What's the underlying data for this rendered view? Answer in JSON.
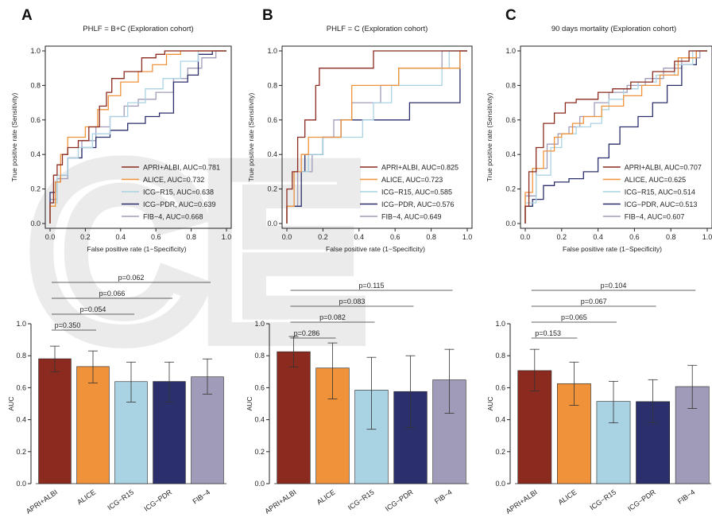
{
  "colors": {
    "APRI+ALBI": "#8b2a1e",
    "ALICE": "#f0923a",
    "ICG-R15": "#a9d3e3",
    "ICG-PDR": "#2b2f6b",
    "FIB-4": "#a09bb8"
  },
  "watermark_text": "CE",
  "chart_data": [
    {
      "panel": "A",
      "type": "line",
      "title": "PHLF = B+C (Exploration cohort)",
      "xlabel": "False positive rate (1−Specificity)",
      "ylabel": "True positive rate (Sensitivity)",
      "xlim": [
        0,
        1
      ],
      "ylim": [
        0,
        1
      ],
      "ticks": [
        "0.0",
        "0.2",
        "0.4",
        "0.6",
        "0.8",
        "1.0"
      ],
      "legend_position": "bottom-right",
      "series": [
        {
          "key": "APRI+ALBI",
          "name": "APRI+ALBI, AUC=0.781",
          "points": [
            [
              0,
              0
            ],
            [
              0.02,
              0.12
            ],
            [
              0.04,
              0.28
            ],
            [
              0.07,
              0.34
            ],
            [
              0.1,
              0.4
            ],
            [
              0.16,
              0.44
            ],
            [
              0.22,
              0.48
            ],
            [
              0.28,
              0.56
            ],
            [
              0.32,
              0.68
            ],
            [
              0.35,
              0.76
            ],
            [
              0.42,
              0.84
            ],
            [
              0.52,
              0.88
            ],
            [
              0.6,
              0.96
            ],
            [
              0.65,
              0.98
            ],
            [
              0.8,
              1.0
            ],
            [
              1,
              1
            ]
          ]
        },
        {
          "key": "ALICE",
          "name": "ALICE, AUC=0.732",
          "points": [
            [
              0,
              0
            ],
            [
              0.03,
              0.1
            ],
            [
              0.06,
              0.24
            ],
            [
              0.1,
              0.4
            ],
            [
              0.14,
              0.5
            ],
            [
              0.2,
              0.5
            ],
            [
              0.27,
              0.56
            ],
            [
              0.33,
              0.66
            ],
            [
              0.4,
              0.74
            ],
            [
              0.5,
              0.82
            ],
            [
              0.58,
              0.88
            ],
            [
              0.66,
              0.92
            ],
            [
              0.74,
              0.98
            ],
            [
              1,
              1
            ]
          ]
        },
        {
          "key": "ICG-R15",
          "name": "ICG−R15, AUC=0.638",
          "points": [
            [
              0,
              0
            ],
            [
              0.04,
              0.12
            ],
            [
              0.1,
              0.28
            ],
            [
              0.16,
              0.38
            ],
            [
              0.24,
              0.44
            ],
            [
              0.34,
              0.52
            ],
            [
              0.44,
              0.62
            ],
            [
              0.54,
              0.7
            ],
            [
              0.64,
              0.78
            ],
            [
              0.74,
              0.84
            ],
            [
              0.84,
              0.94
            ],
            [
              1,
              1
            ]
          ]
        },
        {
          "key": "ICG-PDR",
          "name": "ICG−PDR, AUC=0.639",
          "points": [
            [
              0,
              0
            ],
            [
              0.03,
              0.18
            ],
            [
              0.06,
              0.24
            ],
            [
              0.1,
              0.28
            ],
            [
              0.18,
              0.38
            ],
            [
              0.26,
              0.44
            ],
            [
              0.34,
              0.5
            ],
            [
              0.44,
              0.54
            ],
            [
              0.54,
              0.58
            ],
            [
              0.62,
              0.62
            ],
            [
              0.7,
              0.64
            ],
            [
              0.78,
              0.82
            ],
            [
              0.84,
              0.86
            ],
            [
              0.92,
              0.98
            ],
            [
              1,
              1
            ]
          ]
        },
        {
          "key": "FIB-4",
          "name": "FIB−4, AUC=0.668",
          "points": [
            [
              0,
              0
            ],
            [
              0.04,
              0.14
            ],
            [
              0.1,
              0.26
            ],
            [
              0.18,
              0.38
            ],
            [
              0.26,
              0.48
            ],
            [
              0.34,
              0.56
            ],
            [
              0.42,
              0.62
            ],
            [
              0.5,
              0.68
            ],
            [
              0.6,
              0.72
            ],
            [
              0.7,
              0.76
            ],
            [
              0.78,
              0.84
            ],
            [
              0.86,
              0.9
            ],
            [
              0.94,
              0.96
            ],
            [
              1,
              1
            ]
          ]
        }
      ]
    },
    {
      "panel": "B",
      "type": "line",
      "title": "PHLF = C (Exploration cohort)",
      "xlabel": "False positive rate (1−Specificity)",
      "ylabel": "True positive rate (Sensitivity)",
      "xlim": [
        0,
        1
      ],
      "ylim": [
        0,
        1
      ],
      "ticks": [
        "0.0",
        "0.2",
        "0.4",
        "0.6",
        "0.8",
        "1.0"
      ],
      "legend_position": "bottom-right",
      "series": [
        {
          "key": "APRI+ALBI",
          "name": "APRI+ALBI, AUC=0.825",
          "points": [
            [
              0,
              0
            ],
            [
              0.03,
              0.2
            ],
            [
              0.06,
              0.3
            ],
            [
              0.1,
              0.5
            ],
            [
              0.16,
              0.6
            ],
            [
              0.18,
              0.8
            ],
            [
              0.28,
              0.9
            ],
            [
              0.48,
              0.9
            ],
            [
              0.52,
              1.0
            ],
            [
              1,
              1
            ]
          ]
        },
        {
          "key": "ALICE",
          "name": "ALICE, AUC=0.723",
          "points": [
            [
              0,
              0
            ],
            [
              0.04,
              0.1
            ],
            [
              0.08,
              0.3
            ],
            [
              0.12,
              0.4
            ],
            [
              0.2,
              0.5
            ],
            [
              0.3,
              0.5
            ],
            [
              0.36,
              0.6
            ],
            [
              0.4,
              0.8
            ],
            [
              0.62,
              0.8
            ],
            [
              0.66,
              0.9
            ],
            [
              0.96,
              0.9
            ],
            [
              1,
              1
            ]
          ]
        },
        {
          "key": "ICG-R15",
          "name": "ICG−R15, AUC=0.585",
          "points": [
            [
              0,
              0
            ],
            [
              0.04,
              0.1
            ],
            [
              0.12,
              0.3
            ],
            [
              0.2,
              0.4
            ],
            [
              0.3,
              0.5
            ],
            [
              0.42,
              0.5
            ],
            [
              0.48,
              0.6
            ],
            [
              0.58,
              0.7
            ],
            [
              0.72,
              0.8
            ],
            [
              0.86,
              0.8
            ],
            [
              0.9,
              0.9
            ],
            [
              1,
              1
            ]
          ]
        },
        {
          "key": "ICG-PDR",
          "name": "ICG−PDR, AUC=0.576",
          "points": [
            [
              0,
              0
            ],
            [
              0.08,
              0.1
            ],
            [
              0.1,
              0.3
            ],
            [
              0.2,
              0.4
            ],
            [
              0.24,
              0.5
            ],
            [
              0.3,
              0.5
            ],
            [
              0.36,
              0.6
            ],
            [
              0.68,
              0.6
            ],
            [
              0.72,
              0.7
            ],
            [
              0.96,
              0.7
            ],
            [
              1,
              1
            ]
          ]
        },
        {
          "key": "FIB-4",
          "name": "FIB−4, AUC=0.649",
          "points": [
            [
              0,
              0
            ],
            [
              0.06,
              0.1
            ],
            [
              0.14,
              0.3
            ],
            [
              0.2,
              0.4
            ],
            [
              0.26,
              0.5
            ],
            [
              0.36,
              0.6
            ],
            [
              0.52,
              0.7
            ],
            [
              0.62,
              0.8
            ],
            [
              0.76,
              0.9
            ],
            [
              0.86,
              0.9
            ],
            [
              1,
              1
            ]
          ]
        }
      ]
    },
    {
      "panel": "C",
      "type": "line",
      "title": "90 days mortality (Exploration cohort)",
      "xlabel": "False positive rate (1−Specificity)",
      "ylabel": "True positive rate (Sensitivity)",
      "xlim": [
        0,
        1
      ],
      "ylim": [
        0,
        1
      ],
      "ticks": [
        "0.0",
        "0.2",
        "0.4",
        "0.6",
        "0.8",
        "1.0"
      ],
      "legend_position": "bottom-right",
      "series": [
        {
          "key": "APRI+ALBI",
          "name": "APRI+ALBI, AUC=0.707",
          "points": [
            [
              0,
              0
            ],
            [
              0.02,
              0.1
            ],
            [
              0.06,
              0.3
            ],
            [
              0.1,
              0.44
            ],
            [
              0.16,
              0.58
            ],
            [
              0.22,
              0.64
            ],
            [
              0.28,
              0.7
            ],
            [
              0.4,
              0.72
            ],
            [
              0.48,
              0.76
            ],
            [
              0.58,
              0.78
            ],
            [
              0.7,
              0.82
            ],
            [
              0.82,
              0.88
            ],
            [
              0.9,
              0.94
            ],
            [
              0.96,
              1.0
            ],
            [
              1,
              1
            ]
          ]
        },
        {
          "key": "ALICE",
          "name": "ALICE, AUC=0.625",
          "points": [
            [
              0,
              0
            ],
            [
              0.04,
              0.18
            ],
            [
              0.1,
              0.32
            ],
            [
              0.16,
              0.42
            ],
            [
              0.2,
              0.5
            ],
            [
              0.26,
              0.52
            ],
            [
              0.32,
              0.58
            ],
            [
              0.42,
              0.62
            ],
            [
              0.54,
              0.68
            ],
            [
              0.64,
              0.74
            ],
            [
              0.74,
              0.8
            ],
            [
              0.84,
              0.86
            ],
            [
              0.94,
              0.96
            ],
            [
              1,
              1
            ]
          ]
        },
        {
          "key": "ICG-R15",
          "name": "ICG−R15, AUC=0.514",
          "points": [
            [
              0,
              0
            ],
            [
              0.06,
              0.12
            ],
            [
              0.14,
              0.28
            ],
            [
              0.2,
              0.44
            ],
            [
              0.28,
              0.52
            ],
            [
              0.36,
              0.56
            ],
            [
              0.42,
              0.58
            ],
            [
              0.46,
              0.66
            ],
            [
              0.54,
              0.72
            ],
            [
              0.62,
              0.78
            ],
            [
              0.72,
              0.82
            ],
            [
              0.82,
              0.86
            ],
            [
              0.92,
              0.92
            ],
            [
              1,
              1
            ]
          ]
        },
        {
          "key": "ICG-PDR",
          "name": "ICG−PDR, AUC=0.513",
          "points": [
            [
              0,
              0
            ],
            [
              0.04,
              0.1
            ],
            [
              0.1,
              0.14
            ],
            [
              0.16,
              0.22
            ],
            [
              0.24,
              0.24
            ],
            [
              0.32,
              0.26
            ],
            [
              0.4,
              0.3
            ],
            [
              0.46,
              0.38
            ],
            [
              0.52,
              0.46
            ],
            [
              0.62,
              0.56
            ],
            [
              0.7,
              0.62
            ],
            [
              0.78,
              0.7
            ],
            [
              0.86,
              0.8
            ],
            [
              0.94,
              0.92
            ],
            [
              1,
              1
            ]
          ]
        },
        {
          "key": "FIB-4",
          "name": "FIB−4, AUC=0.607",
          "points": [
            [
              0,
              0
            ],
            [
              0.06,
              0.16
            ],
            [
              0.12,
              0.32
            ],
            [
              0.18,
              0.46
            ],
            [
              0.24,
              0.52
            ],
            [
              0.3,
              0.56
            ],
            [
              0.38,
              0.62
            ],
            [
              0.46,
              0.7
            ],
            [
              0.56,
              0.76
            ],
            [
              0.66,
              0.8
            ],
            [
              0.76,
              0.84
            ],
            [
              0.86,
              0.9
            ],
            [
              0.96,
              0.96
            ],
            [
              1,
              1
            ]
          ]
        }
      ]
    },
    {
      "panel": "A",
      "type": "bar",
      "ylabel": "AUC",
      "ylim": [
        0,
        1
      ],
      "ticks": [
        "0.0",
        "0.2",
        "0.4",
        "0.6",
        "0.8",
        "1.0"
      ],
      "categories": [
        "APRI+ALBI",
        "ALICE",
        "ICG−R15",
        "ICG−PDR",
        "FIB−4"
      ],
      "keys": [
        "APRI+ALBI",
        "ALICE",
        "ICG-R15",
        "ICG-PDR",
        "FIB-4"
      ],
      "values": [
        0.781,
        0.732,
        0.638,
        0.639,
        0.668
      ],
      "ci_low": [
        0.7,
        0.63,
        0.51,
        0.51,
        0.56
      ],
      "ci_high": [
        0.86,
        0.83,
        0.76,
        0.76,
        0.78
      ],
      "comparisons": [
        {
          "to": 1,
          "label": "p=0.350"
        },
        {
          "to": 2,
          "label": "p=0.054"
        },
        {
          "to": 3,
          "label": "p=0.066"
        },
        {
          "to": 4,
          "label": "p=0.062"
        }
      ]
    },
    {
      "panel": "B",
      "type": "bar",
      "ylabel": "AUC",
      "ylim": [
        0,
        1
      ],
      "ticks": [
        "0.0",
        "0.2",
        "0.4",
        "0.6",
        "0.8",
        "1.0"
      ],
      "categories": [
        "APRI+ALBI",
        "ALICE",
        "ICG−R15",
        "ICG−PDR",
        "FIB−4"
      ],
      "keys": [
        "APRI+ALBI",
        "ALICE",
        "ICG-R15",
        "ICG-PDR",
        "FIB-4"
      ],
      "values": [
        0.825,
        0.723,
        0.585,
        0.576,
        0.649
      ],
      "ci_low": [
        0.73,
        0.53,
        0.34,
        0.35,
        0.44
      ],
      "ci_high": [
        0.92,
        0.88,
        0.79,
        0.8,
        0.84
      ],
      "comparisons": [
        {
          "to": 1,
          "label": "p=0.286"
        },
        {
          "to": 2,
          "label": "p=0.082"
        },
        {
          "to": 3,
          "label": "p=0.083"
        },
        {
          "to": 4,
          "label": "p=0.115"
        }
      ]
    },
    {
      "panel": "C",
      "type": "bar",
      "ylabel": "AUC",
      "ylim": [
        0,
        1
      ],
      "ticks": [
        "0.0",
        "0.2",
        "0.4",
        "0.6",
        "0.8",
        "1.0"
      ],
      "categories": [
        "APRI+ALBI",
        "ALICE",
        "ICG−R15",
        "ICG−PDR",
        "FIB−4"
      ],
      "keys": [
        "APRI+ALBI",
        "ALICE",
        "ICG-R15",
        "ICG-PDR",
        "FIB-4"
      ],
      "values": [
        0.707,
        0.625,
        0.514,
        0.513,
        0.607
      ],
      "ci_low": [
        0.58,
        0.49,
        0.38,
        0.38,
        0.47
      ],
      "ci_high": [
        0.84,
        0.76,
        0.64,
        0.65,
        0.74
      ],
      "comparisons": [
        {
          "to": 1,
          "label": "p=0.153"
        },
        {
          "to": 2,
          "label": "p=0.065"
        },
        {
          "to": 3,
          "label": "p=0.067"
        },
        {
          "to": 4,
          "label": "p=0.104"
        }
      ]
    }
  ]
}
